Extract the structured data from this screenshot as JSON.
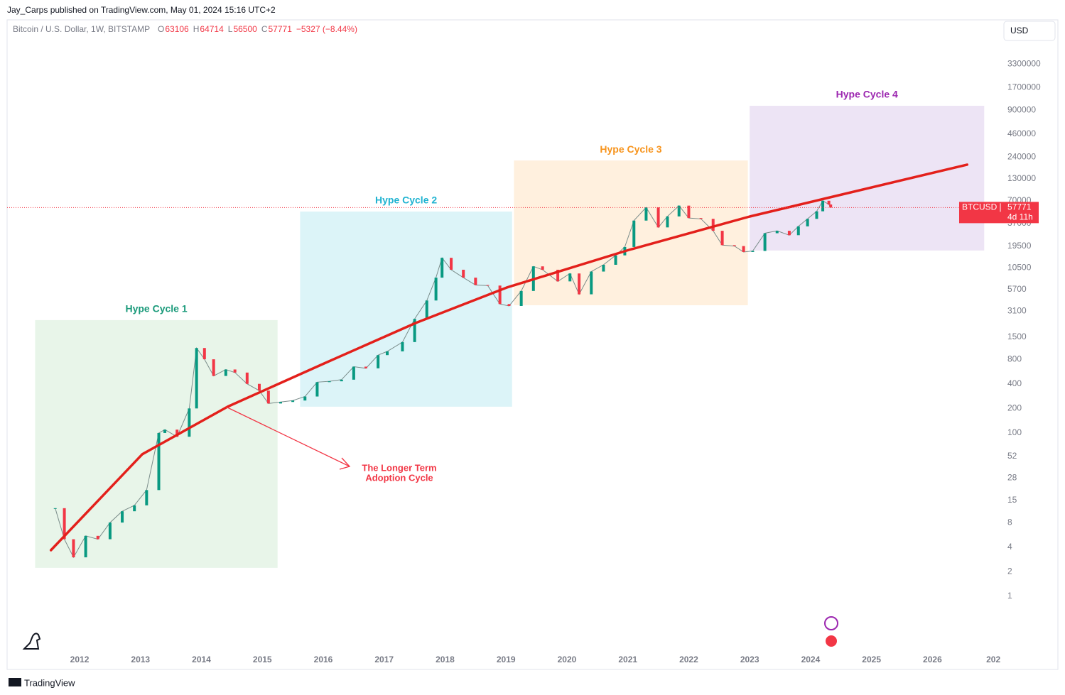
{
  "header": {
    "publisher": "Jay_Carps published on TradingView.com, May 01, 2024 15:16 UTC+2",
    "footer": "TradingView"
  },
  "chart_data": {
    "type": "candlestick",
    "symbol": "Bitcoin / U.S. Dollar, 1W, BITSTAMP",
    "ohlc_labels": [
      "O",
      "H",
      "L",
      "C"
    ],
    "ohlc": [
      63106,
      64714,
      56500,
      57771
    ],
    "change": "−5327 (−8.44%)",
    "currency": "USD",
    "log_scale": true,
    "xlim": [
      2010.81,
      2027.08
    ],
    "xticks": [
      2012,
      2013,
      2014,
      2015,
      2016,
      2017,
      2018,
      2019,
      2020,
      2021,
      2022,
      2023,
      2024,
      2025,
      2026,
      {
        "value": 2027,
        "label": "202"
      }
    ],
    "ylim": [
      0.127,
      11500000
    ],
    "yticks": [
      1,
      2,
      4,
      8,
      15,
      28,
      52,
      100,
      200,
      400,
      800,
      1500,
      3100,
      5700,
      10500,
      19500,
      37000,
      70000,
      130000,
      240000,
      460000,
      900000,
      1700000,
      3300000
    ],
    "up_color": "#089981",
    "down_color": "#f23645",
    "x": [
      2011.6,
      2011.75,
      2011.9,
      2012.1,
      2012.3,
      2012.5,
      2012.7,
      2012.9,
      2013.1,
      2013.3,
      2013.4,
      2013.6,
      2013.8,
      2013.92,
      2014.05,
      2014.2,
      2014.4,
      2014.55,
      2014.75,
      2014.95,
      2015.1,
      2015.3,
      2015.5,
      2015.7,
      2015.9,
      2016.1,
      2016.3,
      2016.5,
      2016.7,
      2016.9,
      2017.05,
      2017.3,
      2017.5,
      2017.7,
      2017.85,
      2017.95,
      2018.1,
      2018.3,
      2018.5,
      2018.7,
      2018.9,
      2019.05,
      2019.25,
      2019.45,
      2019.6,
      2019.85,
      2020.05,
      2020.2,
      2020.4,
      2020.6,
      2020.8,
      2020.95,
      2021.1,
      2021.3,
      2021.5,
      2021.65,
      2021.84,
      2022.0,
      2022.2,
      2022.4,
      2022.55,
      2022.75,
      2022.9,
      2023.05,
      2023.25,
      2023.45,
      2023.65,
      2023.8,
      2023.95,
      2024.1,
      2024.2,
      2024.3,
      2024.33
    ],
    "values": [
      12,
      5,
      3,
      5.5,
      5,
      8,
      11,
      13,
      20,
      100,
      110,
      90,
      200,
      1100,
      800,
      500,
      600,
      550,
      400,
      330,
      230,
      240,
      250,
      280,
      420,
      430,
      450,
      650,
      620,
      900,
      1000,
      1300,
      2500,
      4200,
      8000,
      14000,
      10000,
      8000,
      6500,
      6400,
      3800,
      3600,
      5500,
      11000,
      10000,
      7200,
      9000,
      5000,
      9500,
      11500,
      15000,
      19000,
      40000,
      58000,
      33000,
      45000,
      61000,
      43000,
      42000,
      30000,
      20000,
      19500,
      16500,
      17000,
      28000,
      30000,
      26500,
      34000,
      42000,
      52000,
      70000,
      63000,
      57771
    ],
    "trend": {
      "color": "#e3201b",
      "x": [
        2011.53,
        2013.03,
        2014.43,
        2016.01,
        2017.52,
        2019.01,
        2021.02,
        2023.0,
        2024.22,
        2026.57
      ],
      "values": [
        3.67,
        55,
        210,
        710,
        2230,
        6040,
        17500,
        44900,
        74000,
        194000
      ]
    },
    "zones": [
      {
        "label": "Hype Cycle 1",
        "color": "#1a9a7a",
        "fill": "#e8f5e9",
        "x": [
          2011.27,
          2015.25
        ],
        "y": [
          2.23,
          2414
        ]
      },
      {
        "label": "Hype Cycle 2",
        "color": "#1fb3d1",
        "fill": "#dcf4f8",
        "x": [
          2015.62,
          2019.1
        ],
        "y": [
          210,
          51600
        ]
      },
      {
        "label": "Hype Cycle 3",
        "color": "#f7941d",
        "fill": "#fff0de",
        "x": [
          2019.13,
          2022.97
        ],
        "y": [
          3675,
          218000
        ]
      },
      {
        "label": "Hype Cycle 4",
        "color": "#9c27b0",
        "fill": "#ede4f5",
        "x": [
          2023.0,
          2026.85
        ],
        "y": [
          17200,
          1020000
        ]
      }
    ],
    "annotation": [
      "The Longer Term",
      "Adoption Cycle"
    ],
    "last_price": {
      "symbol": "BTCUSD",
      "countdown": "4d 11h"
    }
  }
}
